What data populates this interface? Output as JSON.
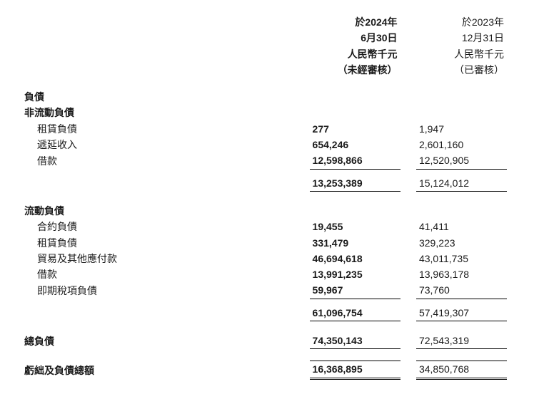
{
  "headers": {
    "col1_l1": "於2024年",
    "col1_l2": "6月30日",
    "col1_l3": "人民幣千元",
    "col1_l4": "（未經審核）",
    "col2_l1": "於2023年",
    "col2_l2": "12月31日",
    "col2_l3": "人民幣千元",
    "col2_l4": "（已審核）"
  },
  "sections": {
    "liabilities": "負債",
    "ncl_title": "非流動負債",
    "cl_title": "流動負債",
    "total_liab": "總負債",
    "total_def_liab": "虧絀及負債總額"
  },
  "rows": {
    "ncl": {
      "lease": {
        "label": "租賃負債",
        "a": "277",
        "b": "1,947"
      },
      "deferred": {
        "label": "遞延收入",
        "a": "654,246",
        "b": "2,601,160"
      },
      "borrow": {
        "label": "借款",
        "a": "12,598,866",
        "b": "12,520,905"
      },
      "subtotal": {
        "a": "13,253,389",
        "b": "15,124,012"
      }
    },
    "cl": {
      "contract": {
        "label": "合約負債",
        "a": "19,455",
        "b": "41,411"
      },
      "lease": {
        "label": "租賃負債",
        "a": "331,479",
        "b": "329,223"
      },
      "trade": {
        "label": "貿易及其他應付款",
        "a": "46,694,618",
        "b": "43,011,735"
      },
      "borrow": {
        "label": "借款",
        "a": "13,991,235",
        "b": "13,963,178"
      },
      "tax": {
        "label": "即期稅項負債",
        "a": "59,967",
        "b": "73,760"
      },
      "subtotal": {
        "a": "61,096,754",
        "b": "57,419,307"
      }
    },
    "total_liab": {
      "a": "74,350,143",
      "b": "72,543,319"
    },
    "total_def_liab": {
      "a": "16,368,895",
      "b": "34,850,768"
    }
  },
  "colors": {
    "text": "#1a1a1a",
    "bg": "#ffffff"
  },
  "fontSizePx": 14
}
